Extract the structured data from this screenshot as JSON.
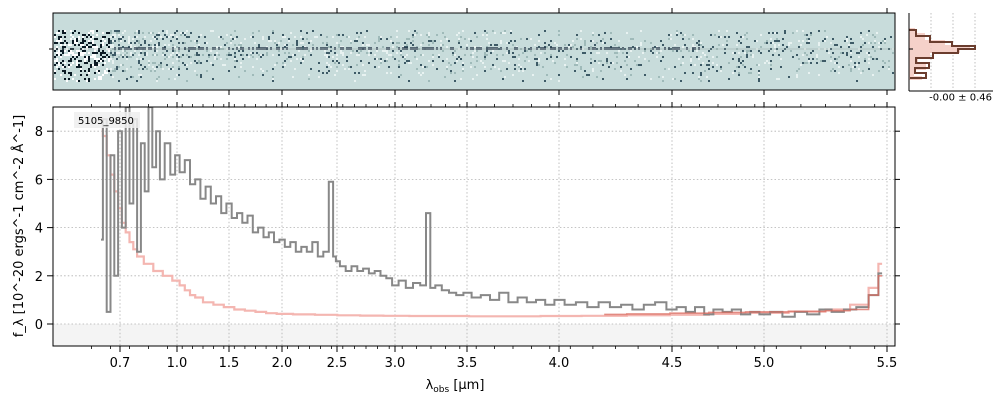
{
  "chart_data": {
    "type": "line",
    "object_label": "5105_9850",
    "xlabel_main": "λ",
    "xlabel_sub": "obs",
    "xlabel_unit": " [μm]",
    "ylabel": "f_λ [10^-20 ergs^-1 cm^-2 Å^-1]",
    "x_scale": "wavelength (compressed toward red)",
    "xticks": [
      "0.7",
      "1.0",
      "1.5",
      "2.0",
      "2.5",
      "3.0",
      "3.5",
      "4.0",
      "4.5",
      "5.0",
      "5.5"
    ],
    "yticks": [
      "0",
      "2",
      "4",
      "6",
      "8"
    ],
    "ylim": [
      -0.9,
      9.0
    ],
    "grid": true,
    "profile_annotation": "-0.00 ± 0.46",
    "colors": {
      "spectrum": "#888888",
      "error": "#f4b6b1",
      "model": "#d96a5e",
      "image_bg": "#c8dcdb",
      "profile": "#6b3d2e",
      "profile_fill": "#f3c9bf"
    },
    "series": [],
    "spectrum_points": [
      [
        0.6,
        3.5
      ],
      [
        0.62,
        8.5
      ],
      [
        0.64,
        0.5
      ],
      [
        0.66,
        7.0
      ],
      [
        0.68,
        2.0
      ],
      [
        0.7,
        8.0
      ],
      [
        0.72,
        4.0
      ],
      [
        0.74,
        9.0
      ],
      [
        0.76,
        5.0
      ],
      [
        0.78,
        8.5
      ],
      [
        0.8,
        3.0
      ],
      [
        0.82,
        7.5
      ],
      [
        0.84,
        5.5
      ],
      [
        0.86,
        9.0
      ],
      [
        0.88,
        6.5
      ],
      [
        0.9,
        8.0
      ],
      [
        0.92,
        6.0
      ],
      [
        0.95,
        7.5
      ],
      [
        0.98,
        6.2
      ],
      [
        1.0,
        7.0
      ],
      [
        1.05,
        6.3
      ],
      [
        1.1,
        6.8
      ],
      [
        1.15,
        5.8
      ],
      [
        1.2,
        6.0
      ],
      [
        1.25,
        5.2
      ],
      [
        1.3,
        5.7
      ],
      [
        1.35,
        5.0
      ],
      [
        1.4,
        5.3
      ],
      [
        1.45,
        4.6
      ],
      [
        1.5,
        5.0
      ],
      [
        1.55,
        4.4
      ],
      [
        1.6,
        4.6
      ],
      [
        1.65,
        4.2
      ],
      [
        1.7,
        4.5
      ],
      [
        1.75,
        3.8
      ],
      [
        1.8,
        4.0
      ],
      [
        1.85,
        3.6
      ],
      [
        1.9,
        3.8
      ],
      [
        1.95,
        3.4
      ],
      [
        2.0,
        3.5
      ],
      [
        2.05,
        3.2
      ],
      [
        2.1,
        3.4
      ],
      [
        2.15,
        3.0
      ],
      [
        2.2,
        3.2
      ],
      [
        2.25,
        3.0
      ],
      [
        2.3,
        3.4
      ],
      [
        2.35,
        2.8
      ],
      [
        2.4,
        3.0
      ],
      [
        2.45,
        5.9
      ],
      [
        2.48,
        2.8
      ],
      [
        2.5,
        2.6
      ],
      [
        2.55,
        2.4
      ],
      [
        2.6,
        2.2
      ],
      [
        2.65,
        2.4
      ],
      [
        2.7,
        2.2
      ],
      [
        2.75,
        2.3
      ],
      [
        2.8,
        2.1
      ],
      [
        2.85,
        2.2
      ],
      [
        2.9,
        2.0
      ],
      [
        2.95,
        1.9
      ],
      [
        3.0,
        1.6
      ],
      [
        3.05,
        1.8
      ],
      [
        3.1,
        1.5
      ],
      [
        3.15,
        1.7
      ],
      [
        3.2,
        1.6
      ],
      [
        3.23,
        4.6
      ],
      [
        3.26,
        1.5
      ],
      [
        3.3,
        1.6
      ],
      [
        3.35,
        1.4
      ],
      [
        3.4,
        1.3
      ],
      [
        3.45,
        1.2
      ],
      [
        3.5,
        1.3
      ],
      [
        3.55,
        1.1
      ],
      [
        3.6,
        1.2
      ],
      [
        3.65,
        1.0
      ],
      [
        3.7,
        1.3
      ],
      [
        3.75,
        0.9
      ],
      [
        3.8,
        1.1
      ],
      [
        3.85,
        0.9
      ],
      [
        3.9,
        1.0
      ],
      [
        3.95,
        0.8
      ],
      [
        4.0,
        1.0
      ],
      [
        4.05,
        0.8
      ],
      [
        4.1,
        0.9
      ],
      [
        4.15,
        0.7
      ],
      [
        4.2,
        0.9
      ],
      [
        4.25,
        0.7
      ],
      [
        4.3,
        0.8
      ],
      [
        4.35,
        0.6
      ],
      [
        4.4,
        0.8
      ],
      [
        4.45,
        0.9
      ],
      [
        4.5,
        0.6
      ],
      [
        4.55,
        0.7
      ],
      [
        4.6,
        0.5
      ],
      [
        4.65,
        0.7
      ],
      [
        4.7,
        0.4
      ],
      [
        4.75,
        0.6
      ],
      [
        4.8,
        0.5
      ],
      [
        4.85,
        0.6
      ],
      [
        4.9,
        0.4
      ],
      [
        4.95,
        0.5
      ],
      [
        5.0,
        0.4
      ],
      [
        5.05,
        0.5
      ],
      [
        5.1,
        0.3
      ],
      [
        5.15,
        0.5
      ],
      [
        5.2,
        0.4
      ],
      [
        5.25,
        0.6
      ],
      [
        5.3,
        0.5
      ],
      [
        5.35,
        0.6
      ],
      [
        5.4,
        0.7
      ],
      [
        5.45,
        1.2
      ],
      [
        5.48,
        2.1
      ]
    ],
    "error_points": [
      [
        0.6,
        8.5
      ],
      [
        0.62,
        7.8
      ],
      [
        0.64,
        7.0
      ],
      [
        0.66,
        6.2
      ],
      [
        0.68,
        5.5
      ],
      [
        0.7,
        4.8
      ],
      [
        0.72,
        4.2
      ],
      [
        0.74,
        3.8
      ],
      [
        0.76,
        3.4
      ],
      [
        0.78,
        3.1
      ],
      [
        0.8,
        2.8
      ],
      [
        0.85,
        2.5
      ],
      [
        0.9,
        2.2
      ],
      [
        0.95,
        2.0
      ],
      [
        1.0,
        1.8
      ],
      [
        1.05,
        1.6
      ],
      [
        1.1,
        1.4
      ],
      [
        1.15,
        1.2
      ],
      [
        1.2,
        1.1
      ],
      [
        1.3,
        0.9
      ],
      [
        1.4,
        0.8
      ],
      [
        1.5,
        0.7
      ],
      [
        1.6,
        0.6
      ],
      [
        1.7,
        0.55
      ],
      [
        1.8,
        0.5
      ],
      [
        1.9,
        0.45
      ],
      [
        2.0,
        0.42
      ],
      [
        2.2,
        0.4
      ],
      [
        2.4,
        0.38
      ],
      [
        2.6,
        0.36
      ],
      [
        2.8,
        0.35
      ],
      [
        3.0,
        0.34
      ],
      [
        3.2,
        0.33
      ],
      [
        3.4,
        0.33
      ],
      [
        3.6,
        0.32
      ],
      [
        3.8,
        0.32
      ],
      [
        4.0,
        0.33
      ],
      [
        4.2,
        0.34
      ],
      [
        4.4,
        0.36
      ],
      [
        4.6,
        0.38
      ],
      [
        4.8,
        0.42
      ],
      [
        5.0,
        0.46
      ],
      [
        5.2,
        0.52
      ],
      [
        5.3,
        0.6
      ],
      [
        5.4,
        0.8
      ],
      [
        5.45,
        1.5
      ],
      [
        5.48,
        2.5
      ]
    ],
    "model_points": [
      [
        4.2,
        0.4
      ],
      [
        4.4,
        0.42
      ],
      [
        4.6,
        0.45
      ],
      [
        4.8,
        0.48
      ],
      [
        5.0,
        0.5
      ],
      [
        5.2,
        0.52
      ],
      [
        5.3,
        0.55
      ],
      [
        5.4,
        0.6
      ],
      [
        5.45,
        1.2
      ],
      [
        5.48,
        2.0
      ]
    ]
  }
}
